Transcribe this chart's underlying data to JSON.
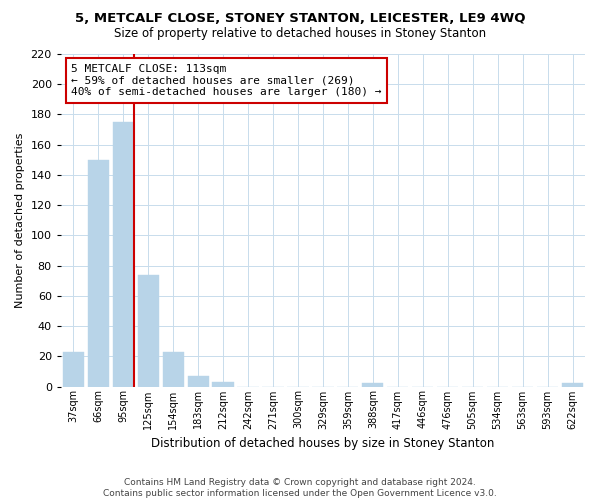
{
  "title": "5, METCALF CLOSE, STONEY STANTON, LEICESTER, LE9 4WQ",
  "subtitle": "Size of property relative to detached houses in Stoney Stanton",
  "xlabel": "Distribution of detached houses by size in Stoney Stanton",
  "ylabel": "Number of detached properties",
  "bar_labels": [
    "37sqm",
    "66sqm",
    "95sqm",
    "125sqm",
    "154sqm",
    "183sqm",
    "212sqm",
    "242sqm",
    "271sqm",
    "300sqm",
    "329sqm",
    "359sqm",
    "388sqm",
    "417sqm",
    "446sqm",
    "476sqm",
    "505sqm",
    "534sqm",
    "563sqm",
    "593sqm",
    "622sqm"
  ],
  "bar_values": [
    23,
    150,
    175,
    74,
    23,
    7,
    3,
    0,
    0,
    0,
    0,
    0,
    2,
    0,
    0,
    0,
    0,
    0,
    0,
    0,
    2
  ],
  "bar_color": "#b8d4e8",
  "vline_color": "#cc0000",
  "vline_x_index": 2,
  "annotation_line1": "5 METCALF CLOSE: 113sqm",
  "annotation_line2": "← 59% of detached houses are smaller (269)",
  "annotation_line3": "40% of semi-detached houses are larger (180) →",
  "annotation_box_color": "#ffffff",
  "annotation_border_color": "#cc0000",
  "ylim": [
    0,
    220
  ],
  "yticks": [
    0,
    20,
    40,
    60,
    80,
    100,
    120,
    140,
    160,
    180,
    200,
    220
  ],
  "footer_text": "Contains HM Land Registry data © Crown copyright and database right 2024.\nContains public sector information licensed under the Open Government Licence v3.0.",
  "background_color": "#ffffff",
  "grid_color": "#c8dcec"
}
